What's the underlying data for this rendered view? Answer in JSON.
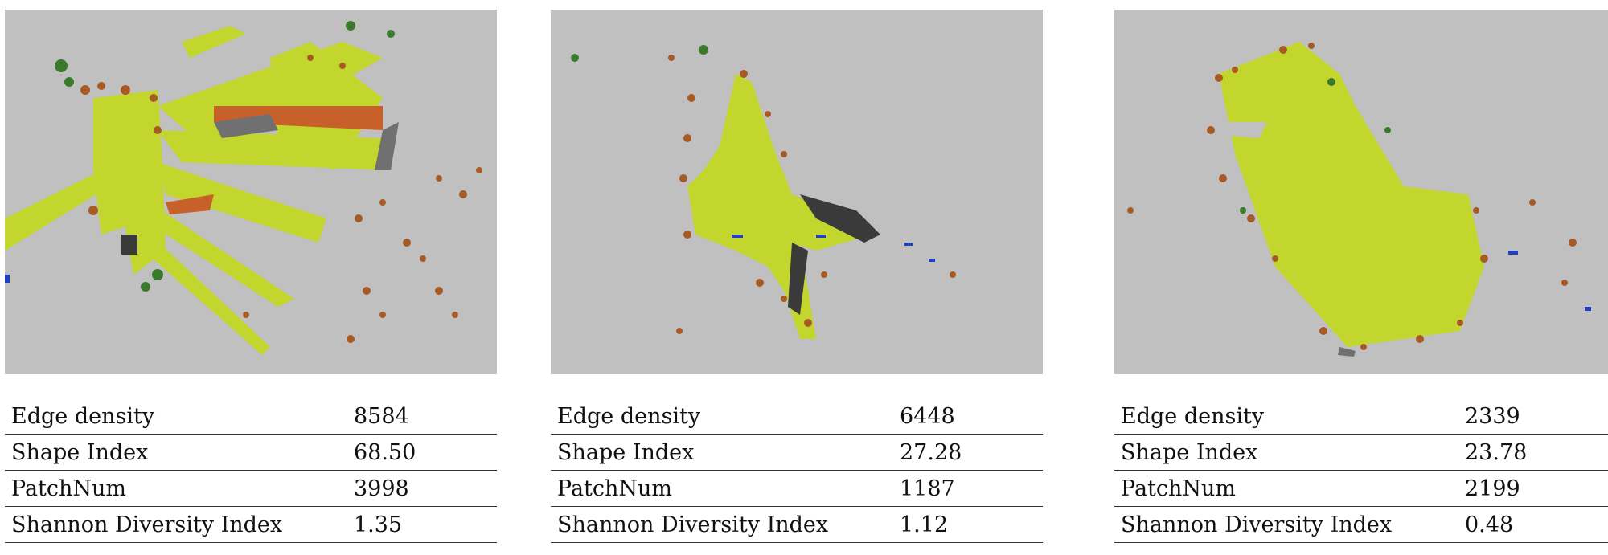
{
  "colors": {
    "background": "#c0c0c0",
    "grass": "#c2d62e",
    "soil": "#a85a25",
    "tree": "#3a7a2a",
    "road": "#707070",
    "dark": "#3a3a3a",
    "water": "#2040c0",
    "orange": "#c8602a"
  },
  "panels": [
    {
      "metrics": [
        {
          "label": "Edge density",
          "value": "8584"
        },
        {
          "label": "Shape Index",
          "value": "68.50"
        },
        {
          "label": "PatchNum",
          "value": "3998"
        },
        {
          "label": "Shannon Diversity Index",
          "value": "1.35"
        }
      ]
    },
    {
      "metrics": [
        {
          "label": "Edge density",
          "value": "6448"
        },
        {
          "label": "Shape Index",
          "value": "27.28"
        },
        {
          "label": "PatchNum",
          "value": "1187"
        },
        {
          "label": "Shannon Diversity Index",
          "value": "1.12"
        }
      ]
    },
    {
      "metrics": [
        {
          "label": "Edge density",
          "value": "2339"
        },
        {
          "label": "Shape Index",
          "value": "23.78"
        },
        {
          "label": "PatchNum",
          "value": "2199"
        },
        {
          "label": "Shannon Diversity Index",
          "value": "0.48"
        }
      ]
    }
  ]
}
